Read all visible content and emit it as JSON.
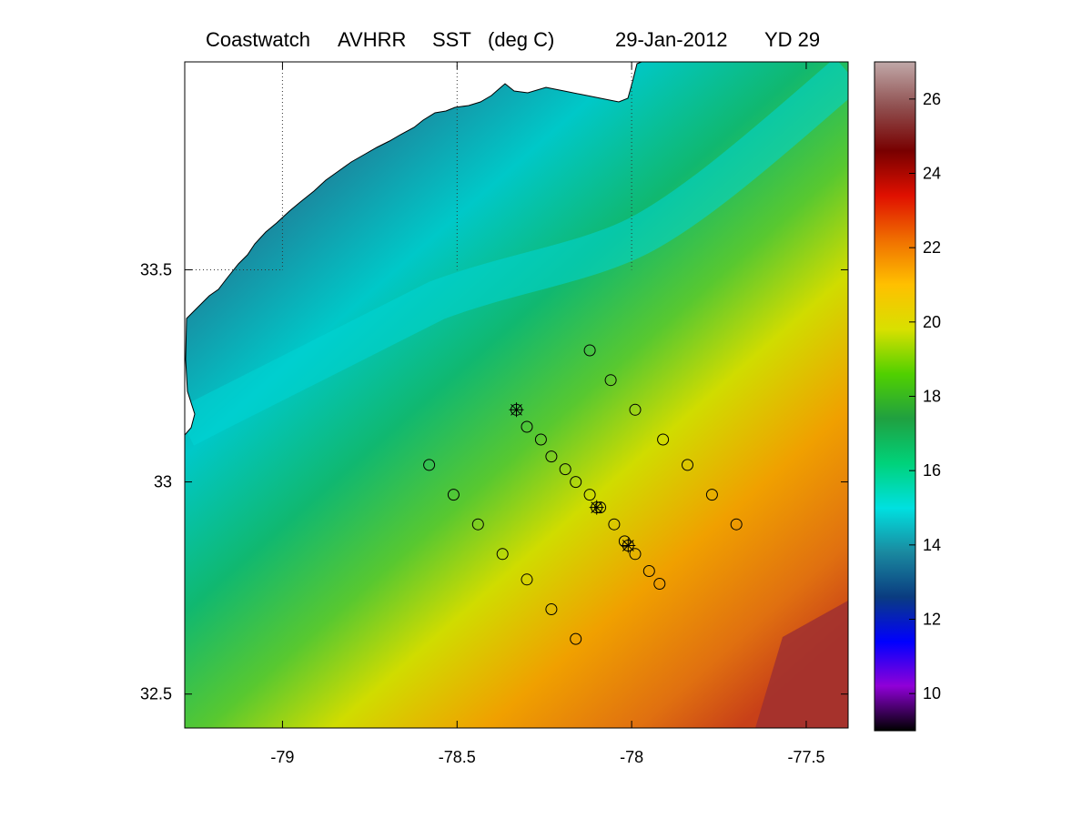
{
  "title": {
    "source": "Coastwatch",
    "sensor": "AVHRR",
    "product": "SST",
    "units": "(deg C)",
    "date": "29-Jan-2012",
    "yearday": "YD 29"
  },
  "map": {
    "lon_range": [
      -79.28,
      -77.38
    ],
    "lat_range": [
      32.42,
      33.99
    ],
    "lon_ticks": [
      "-79",
      "-78.5",
      "-78",
      "-77.5"
    ],
    "lat_ticks": [
      "32.5",
      "33",
      "33.5"
    ],
    "gridlines": "dotted at -79, -78.5, -78 longitude and 33.5 latitude"
  },
  "colorbar": {
    "range": [
      9,
      27
    ],
    "tick_labels": [
      "10",
      "12",
      "14",
      "16",
      "18",
      "20",
      "22",
      "24",
      "26"
    ],
    "colors": [
      "#000000",
      "#9000d8",
      "#0000ff",
      "#0a3c80",
      "#1a8aa0",
      "#00e0e0",
      "#00d27a",
      "#20a040",
      "#50d000",
      "#d8e000",
      "#ffc000",
      "#f07000",
      "#e01000",
      "#780000",
      "#905050",
      "#c0a8a8"
    ]
  },
  "markers": {
    "circles": [
      [
        -78.12,
        33.31
      ],
      [
        -78.06,
        33.24
      ],
      [
        -77.99,
        33.17
      ],
      [
        -77.91,
        33.1
      ],
      [
        -77.84,
        33.04
      ],
      [
        -77.77,
        32.97
      ],
      [
        -77.7,
        32.9
      ],
      [
        -78.3,
        33.13
      ],
      [
        -78.26,
        33.1
      ],
      [
        -78.23,
        33.06
      ],
      [
        -78.19,
        33.03
      ],
      [
        -78.16,
        33.0
      ],
      [
        -78.12,
        32.97
      ],
      [
        -78.09,
        32.94
      ],
      [
        -78.05,
        32.9
      ],
      [
        -78.02,
        32.86
      ],
      [
        -77.99,
        32.83
      ],
      [
        -77.95,
        32.79
      ],
      [
        -77.92,
        32.76
      ],
      [
        -78.58,
        33.04
      ],
      [
        -78.51,
        32.97
      ],
      [
        -78.44,
        32.9
      ],
      [
        -78.37,
        32.83
      ],
      [
        -78.3,
        32.77
      ],
      [
        -78.23,
        32.7
      ],
      [
        -78.16,
        32.63
      ]
    ],
    "stars": [
      [
        -78.33,
        33.17
      ],
      [
        -78.1,
        32.94
      ],
      [
        -78.01,
        32.85
      ]
    ]
  }
}
